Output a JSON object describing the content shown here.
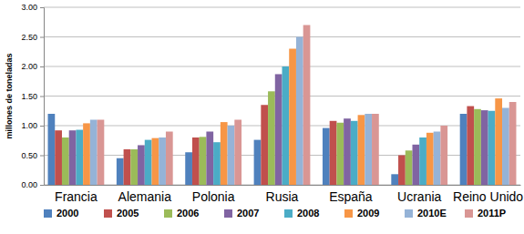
{
  "chart_data": {
    "type": "bar",
    "y_label": "millones de toneladas",
    "categories": [
      "Francia",
      "Alemania",
      "Polonia",
      "Rusia",
      "España",
      "Ucrania",
      "Reino Unido"
    ],
    "series": [
      {
        "name": "2000",
        "color": "#4f81bd",
        "values": [
          1.2,
          0.45,
          0.55,
          0.76,
          0.96,
          0.18,
          1.2
        ]
      },
      {
        "name": "2005",
        "color": "#c0504d",
        "values": [
          0.92,
          0.6,
          0.8,
          1.35,
          1.08,
          0.5,
          1.33
        ]
      },
      {
        "name": "2006",
        "color": "#9bbb59",
        "values": [
          0.8,
          0.6,
          0.81,
          1.58,
          1.05,
          0.58,
          1.28
        ]
      },
      {
        "name": "2007",
        "color": "#8064a2",
        "values": [
          0.92,
          0.67,
          0.9,
          1.87,
          1.12,
          0.68,
          1.26
        ]
      },
      {
        "name": "2008",
        "color": "#4bacc6",
        "values": [
          0.93,
          0.76,
          0.72,
          2.0,
          1.08,
          0.8,
          1.25
        ]
      },
      {
        "name": "2009",
        "color": "#f79646",
        "values": [
          1.04,
          0.79,
          1.06,
          2.3,
          1.18,
          0.88,
          1.46
        ]
      },
      {
        "name": "2010E",
        "color": "#95b3d7",
        "values": [
          1.1,
          0.8,
          1.0,
          2.5,
          1.2,
          0.9,
          1.3
        ]
      },
      {
        "name": "2011P",
        "color": "#d99694",
        "values": [
          1.1,
          0.9,
          1.1,
          2.7,
          1.2,
          1.0,
          1.4
        ]
      }
    ],
    "ylim": [
      0,
      3
    ],
    "yticks": [
      {
        "value": 0,
        "label": "0.00"
      },
      {
        "value": 0.5,
        "label": "0.50"
      },
      {
        "value": 1,
        "label": "1.00"
      },
      {
        "value": 1.5,
        "label": "1.50"
      },
      {
        "value": 2,
        "label": "2.00"
      },
      {
        "value": 2.5,
        "label": "2.50"
      },
      {
        "value": 3,
        "label": "3.00"
      }
    ],
    "grid": true,
    "legend": "bottom"
  }
}
